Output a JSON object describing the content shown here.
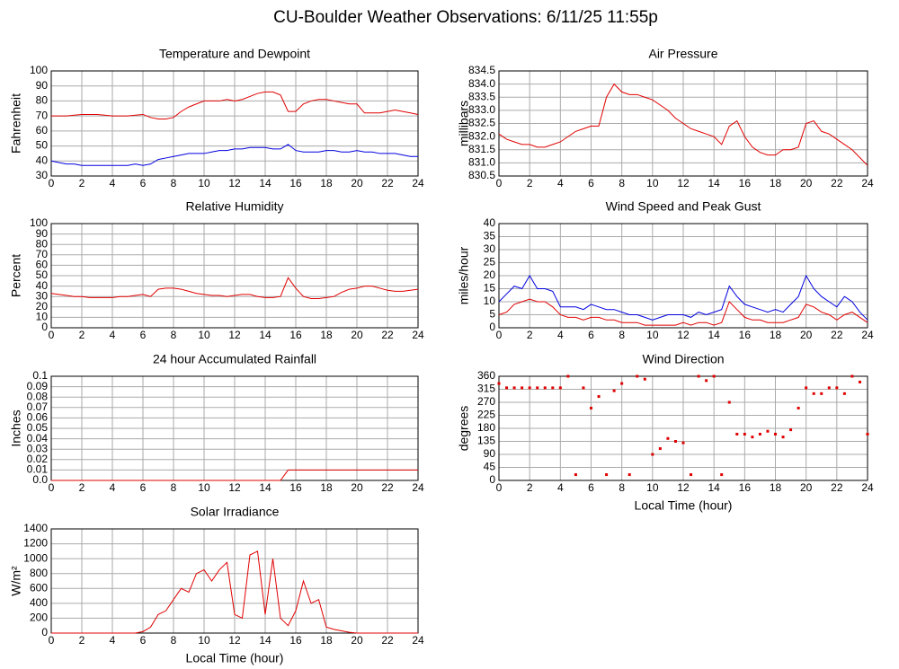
{
  "title": "CU-Boulder Weather Observations: 6/11/25 11:55p",
  "chart_data": [
    {
      "type": "line",
      "title": "Temperature and Dewpoint",
      "ylabel": "Fahrenheit",
      "x": [
        0,
        0.5,
        1,
        1.5,
        2,
        2.5,
        3,
        3.5,
        4,
        4.5,
        5,
        5.5,
        6,
        6.5,
        7,
        7.5,
        8,
        8.5,
        9,
        9.5,
        10,
        10.5,
        11,
        11.5,
        12,
        12.5,
        13,
        13.5,
        14,
        14.5,
        15,
        15.5,
        16,
        16.5,
        17,
        17.5,
        18,
        18.5,
        19,
        19.5,
        20,
        20.5,
        21,
        21.5,
        22,
        22.5,
        23,
        23.5,
        24
      ],
      "series": [
        {
          "color": "#e00000",
          "values": [
            70,
            70,
            70,
            70.5,
            71,
            71,
            71,
            70.5,
            70,
            70,
            70,
            70.5,
            71,
            69,
            68,
            68,
            69,
            73,
            76,
            78,
            80,
            80,
            80,
            81,
            80,
            81,
            83,
            85,
            86,
            86,
            84,
            73,
            73,
            78,
            80,
            81,
            81,
            80,
            79,
            78,
            78,
            72,
            72,
            72,
            73,
            74,
            73,
            72,
            71
          ]
        },
        {
          "color": "#0000e0",
          "values": [
            40,
            39,
            38,
            38,
            37,
            37,
            37,
            37,
            37,
            37,
            37,
            38,
            37,
            38,
            41,
            42,
            43,
            44,
            45,
            45,
            45,
            46,
            47,
            47,
            48,
            48,
            49,
            49,
            49,
            48,
            48,
            51,
            47,
            46,
            46,
            46,
            47,
            47,
            46,
            46,
            47,
            46,
            46,
            45,
            45,
            45,
            44,
            43,
            43
          ]
        }
      ],
      "xlim": [
        0,
        24
      ],
      "xticks": [
        0,
        2,
        4,
        6,
        8,
        10,
        12,
        14,
        16,
        18,
        20,
        22,
        24
      ],
      "ylim": [
        30,
        100
      ],
      "yticks": [
        30,
        40,
        50,
        60,
        70,
        80,
        90,
        100
      ],
      "grid": true
    },
    {
      "type": "line",
      "title": "Air Pressure",
      "ylabel": "millibars",
      "x": [
        0,
        0.5,
        1,
        1.5,
        2,
        2.5,
        3,
        3.5,
        4,
        4.5,
        5,
        5.5,
        6,
        6.5,
        7,
        7.5,
        8,
        8.5,
        9,
        9.5,
        10,
        10.5,
        11,
        11.5,
        12,
        12.5,
        13,
        13.5,
        14,
        14.5,
        15,
        15.5,
        16,
        16.5,
        17,
        17.5,
        18,
        18.5,
        19,
        19.5,
        20,
        20.5,
        21,
        21.5,
        22,
        22.5,
        23,
        23.5,
        24
      ],
      "series": [
        {
          "color": "#e00000",
          "values": [
            832.1,
            831.9,
            831.8,
            831.7,
            831.7,
            831.6,
            831.6,
            831.7,
            831.8,
            832.0,
            832.2,
            832.3,
            832.4,
            832.4,
            833.5,
            834.0,
            833.7,
            833.6,
            833.6,
            833.5,
            833.4,
            833.2,
            833.0,
            832.7,
            832.5,
            832.3,
            832.2,
            832.1,
            832.0,
            831.7,
            832.4,
            832.6,
            832.0,
            831.6,
            831.4,
            831.3,
            831.3,
            831.5,
            831.5,
            831.6,
            832.5,
            832.6,
            832.2,
            832.1,
            831.9,
            831.7,
            831.5,
            831.2,
            830.9
          ]
        }
      ],
      "xlim": [
        0,
        24
      ],
      "xticks": [
        0,
        2,
        4,
        6,
        8,
        10,
        12,
        14,
        16,
        18,
        20,
        22,
        24
      ],
      "ylim": [
        830.5,
        834.5
      ],
      "yticks": [
        830.5,
        {
          "value": 831,
          "label": "831.0"
        },
        831.5,
        {
          "value": 832,
          "label": "832.0"
        },
        832.5,
        {
          "value": 833,
          "label": "833.0"
        },
        833.5,
        {
          "value": 834,
          "label": "834.0"
        },
        834.5
      ],
      "grid": true
    },
    {
      "type": "line",
      "title": "Relative Humidity",
      "ylabel": "Percent",
      "x": [
        0,
        0.5,
        1,
        1.5,
        2,
        2.5,
        3,
        3.5,
        4,
        4.5,
        5,
        5.5,
        6,
        6.5,
        7,
        7.5,
        8,
        8.5,
        9,
        9.5,
        10,
        10.5,
        11,
        11.5,
        12,
        12.5,
        13,
        13.5,
        14,
        14.5,
        15,
        15.5,
        16,
        16.5,
        17,
        17.5,
        18,
        18.5,
        19,
        19.5,
        20,
        20.5,
        21,
        21.5,
        22,
        22.5,
        23,
        23.5,
        24
      ],
      "series": [
        {
          "color": "#e00000",
          "values": [
            33,
            32,
            31,
            30,
            30,
            29,
            29,
            29,
            29,
            30,
            30,
            31,
            32,
            30,
            37,
            38,
            38,
            37,
            35,
            33,
            32,
            31,
            31,
            30,
            31,
            32,
            32,
            30,
            29,
            29,
            30,
            48,
            38,
            30,
            28,
            28,
            29,
            30,
            34,
            37,
            38,
            40,
            40,
            38,
            36,
            35,
            35,
            36,
            37
          ]
        }
      ],
      "xlim": [
        0,
        24
      ],
      "xticks": [
        0,
        2,
        4,
        6,
        8,
        10,
        12,
        14,
        16,
        18,
        20,
        22,
        24
      ],
      "ylim": [
        0,
        100
      ],
      "yticks": [
        0,
        10,
        20,
        30,
        40,
        50,
        60,
        70,
        80,
        90,
        100
      ],
      "grid": true
    },
    {
      "type": "line",
      "title": "Wind Speed and Peak Gust",
      "ylabel": "miles/hour",
      "x": [
        0,
        0.5,
        1,
        1.5,
        2,
        2.5,
        3,
        3.5,
        4,
        4.5,
        5,
        5.5,
        6,
        6.5,
        7,
        7.5,
        8,
        8.5,
        9,
        9.5,
        10,
        10.5,
        11,
        11.5,
        12,
        12.5,
        13,
        13.5,
        14,
        14.5,
        15,
        15.5,
        16,
        16.5,
        17,
        17.5,
        18,
        18.5,
        19,
        19.5,
        20,
        20.5,
        21,
        21.5,
        22,
        22.5,
        23,
        23.5,
        24
      ],
      "series": [
        {
          "color": "#0000e0",
          "values": [
            10,
            13,
            16,
            15,
            20,
            15,
            15,
            14,
            8,
            8,
            8,
            7,
            9,
            8,
            7,
            7,
            6,
            5,
            5,
            4,
            3,
            4,
            5,
            5,
            5,
            4,
            6,
            5,
            6,
            7,
            16,
            12,
            9,
            8,
            7,
            6,
            7,
            6,
            9,
            12,
            20,
            15,
            12,
            10,
            8,
            12,
            10,
            6,
            3
          ]
        },
        {
          "color": "#e00000",
          "values": [
            5,
            6,
            9,
            10,
            11,
            10,
            10,
            8,
            5,
            4,
            4,
            3,
            4,
            4,
            3,
            3,
            2,
            2,
            2,
            1,
            1,
            1,
            1,
            1,
            2,
            1,
            2,
            2,
            1,
            2,
            10,
            7,
            4,
            3,
            3,
            2,
            2,
            2,
            3,
            4,
            9,
            8,
            6,
            5,
            3,
            5,
            6,
            4,
            2
          ]
        }
      ],
      "xlim": [
        0,
        24
      ],
      "xticks": [
        0,
        2,
        4,
        6,
        8,
        10,
        12,
        14,
        16,
        18,
        20,
        22,
        24
      ],
      "ylim": [
        0,
        40
      ],
      "yticks": [
        0,
        5,
        10,
        15,
        20,
        25,
        30,
        35,
        40
      ],
      "grid": true
    },
    {
      "type": "line",
      "title": "24 hour Accumulated Rainfall",
      "ylabel": "Inches",
      "x": [
        0,
        0.5,
        1,
        1.5,
        2,
        2.5,
        3,
        3.5,
        4,
        4.5,
        5,
        5.5,
        6,
        6.5,
        7,
        7.5,
        8,
        8.5,
        9,
        9.5,
        10,
        10.5,
        11,
        11.5,
        12,
        12.5,
        13,
        13.5,
        14,
        14.5,
        15,
        15.5,
        16,
        16.5,
        17,
        17.5,
        18,
        18.5,
        19,
        19.5,
        20,
        20.5,
        21,
        21.5,
        22,
        22.5,
        23,
        23.5,
        24
      ],
      "series": [
        {
          "color": "#e00000",
          "values": [
            0,
            0,
            0,
            0,
            0,
            0,
            0,
            0,
            0,
            0,
            0,
            0,
            0,
            0,
            0,
            0,
            0,
            0,
            0,
            0,
            0,
            0,
            0,
            0,
            0,
            0,
            0,
            0,
            0,
            0,
            0,
            0.01,
            0.01,
            0.01,
            0.01,
            0.01,
            0.01,
            0.01,
            0.01,
            0.01,
            0.01,
            0.01,
            0.01,
            0.01,
            0.01,
            0.01,
            0.01,
            0.01,
            0.01
          ]
        }
      ],
      "xlim": [
        0,
        24
      ],
      "xticks": [
        0,
        2,
        4,
        6,
        8,
        10,
        12,
        14,
        16,
        18,
        20,
        22,
        24
      ],
      "ylim": [
        0,
        0.1
      ],
      "yticks": [
        {
          "value": 0,
          "label": "0.0"
        },
        0.01,
        0.02,
        0.03,
        0.04,
        0.05,
        0.06,
        0.07,
        0.08,
        0.09,
        0.1
      ],
      "grid": true
    },
    {
      "type": "scatter",
      "title": "Wind Direction",
      "ylabel": "degrees",
      "xlabel": "Local Time (hour)",
      "x": [
        0,
        0.5,
        1,
        1.5,
        2,
        2.5,
        3,
        3.5,
        4,
        4.5,
        5,
        5.5,
        6,
        6.5,
        7,
        7.5,
        8,
        8.5,
        9,
        9.5,
        10,
        10.5,
        11,
        11.5,
        12,
        12.5,
        13,
        13.5,
        14,
        14.5,
        15,
        15.5,
        16,
        16.5,
        17,
        17.5,
        18,
        18.5,
        19,
        19.5,
        20,
        20.5,
        21,
        21.5,
        22,
        22.5,
        23,
        23.5,
        24
      ],
      "series": [
        {
          "color": "#e00000",
          "values": [
            335,
            320,
            320,
            320,
            320,
            320,
            320,
            320,
            320,
            360,
            20,
            320,
            250,
            290,
            20,
            310,
            335,
            20,
            360,
            350,
            90,
            110,
            145,
            135,
            130,
            20,
            360,
            345,
            360,
            20,
            270,
            160,
            160,
            150,
            160,
            170,
            160,
            150,
            175,
            250,
            320,
            300,
            300,
            320,
            320,
            300,
            360,
            340,
            160
          ]
        }
      ],
      "xlim": [
        0,
        24
      ],
      "xticks": [
        0,
        2,
        4,
        6,
        8,
        10,
        12,
        14,
        16,
        18,
        20,
        22,
        24
      ],
      "ylim": [
        0,
        360
      ],
      "yticks": [
        0,
        45,
        90,
        135,
        180,
        225,
        270,
        315,
        360
      ],
      "grid": true
    },
    {
      "type": "line",
      "title": "Solar Irradiance",
      "ylabel": "W/m²",
      "xlabel": "Local Time (hour)",
      "x": [
        0,
        0.5,
        1,
        1.5,
        2,
        2.5,
        3,
        3.5,
        4,
        4.5,
        5,
        5.5,
        6,
        6.5,
        7,
        7.5,
        8,
        8.5,
        9,
        9.5,
        10,
        10.5,
        11,
        11.5,
        12,
        12.5,
        13,
        13.5,
        14,
        14.5,
        15,
        15.5,
        16,
        16.5,
        17,
        17.5,
        18,
        18.5,
        19,
        19.5,
        20,
        20.5,
        21,
        21.5,
        22,
        22.5,
        23,
        23.5,
        24
      ],
      "series": [
        {
          "color": "#e00000",
          "values": [
            0,
            0,
            0,
            0,
            0,
            0,
            0,
            0,
            0,
            0,
            0,
            0,
            20,
            80,
            250,
            300,
            450,
            600,
            550,
            800,
            850,
            700,
            850,
            950,
            250,
            200,
            1050,
            1100,
            250,
            1000,
            200,
            100,
            300,
            700,
            400,
            450,
            80,
            50,
            30,
            10,
            0,
            0,
            0,
            0,
            0,
            0,
            0,
            0,
            0
          ]
        }
      ],
      "xlim": [
        0,
        24
      ],
      "xticks": [
        0,
        2,
        4,
        6,
        8,
        10,
        12,
        14,
        16,
        18,
        20,
        22,
        24
      ],
      "ylim": [
        0,
        1400
      ],
      "yticks": [
        0,
        200,
        400,
        600,
        800,
        1000,
        1200,
        1400
      ],
      "grid": true
    }
  ]
}
